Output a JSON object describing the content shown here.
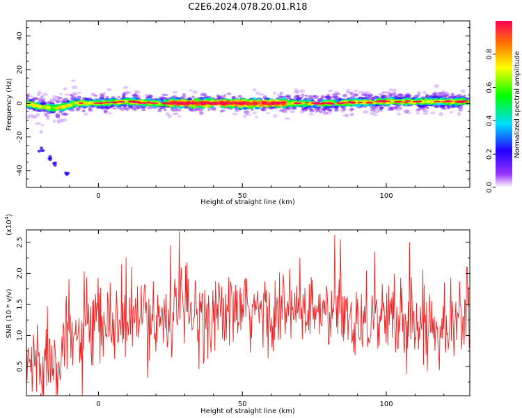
{
  "title": "C2E6.2024.078.20.01.R18",
  "colors": {
    "snr_line": "#ee2222",
    "axis": "#000000",
    "background": "#ffffff"
  },
  "chart_data": [
    {
      "type": "heatmap",
      "xlabel": "Height of straight line (km)",
      "ylabel": "Frequency (Hz)",
      "xlim": [
        -25,
        129
      ],
      "ylim": [
        -50,
        49
      ],
      "xticks": [
        "0",
        "50",
        "100"
      ],
      "yticks": [
        "-40",
        "-20",
        "0",
        "20",
        "40"
      ],
      "colorbar": {
        "label": "Normalized spectral amplitude",
        "ticks": [
          "0.0",
          "0.2",
          "0.4",
          "0.6",
          "0.8"
        ],
        "range": [
          0,
          1
        ]
      },
      "ridge": {
        "description_x": [
          -25,
          -20,
          -15,
          -12,
          -8,
          -5,
          0,
          10,
          20,
          40,
          60,
          80,
          100,
          129
        ],
        "freq_hz": [
          0,
          -2,
          -3,
          -2,
          0,
          0,
          0,
          1,
          0,
          0,
          0,
          0,
          1,
          1
        ]
      },
      "secondary_points": [
        {
          "x": -20,
          "y": -28
        },
        {
          "x": -17,
          "y": -33
        },
        {
          "x": -15,
          "y": -36
        },
        {
          "x": -11,
          "y": -42
        }
      ]
    },
    {
      "type": "line",
      "xlabel": "Height of straight line (km)",
      "ylabel": "SNR (10 * v/v)",
      "y_multiplier": "(x10",
      "y_multiplier_exp": "4",
      "y_multiplier_close": ")",
      "xlim": [
        -25,
        129
      ],
      "ylim": [
        0.03,
        2.7
      ],
      "xticks": [
        "0",
        "50",
        "100"
      ],
      "yticks": [
        "0.5",
        "1.0",
        "1.5",
        "2.0",
        "2.5"
      ],
      "series": [
        {
          "color": "#ee2222",
          "trend_x": [
            -25,
            -20,
            -15,
            -10,
            0,
            10,
            20,
            30,
            40,
            50,
            60,
            70,
            80,
            90,
            100,
            110,
            120,
            129
          ],
          "trend_y": [
            0.55,
            0.6,
            0.75,
            0.9,
            1.1,
            1.25,
            1.3,
            1.35,
            1.35,
            1.35,
            1.4,
            1.35,
            1.35,
            1.3,
            1.3,
            1.2,
            1.25,
            1.2
          ],
          "spread": 0.55,
          "n_points": 700,
          "peaks": [
            {
              "x": 28,
              "y": 2.68
            },
            {
              "x": 82,
              "y": 2.62
            },
            {
              "x": 84,
              "y": 2.55
            },
            {
              "x": 25,
              "y": 2.45
            },
            {
              "x": 108,
              "y": 2.5
            },
            {
              "x": 96,
              "y": 2.35
            },
            {
              "x": 128,
              "y": 2.1
            },
            {
              "x": 70,
              "y": 2.25
            }
          ]
        }
      ]
    }
  ]
}
